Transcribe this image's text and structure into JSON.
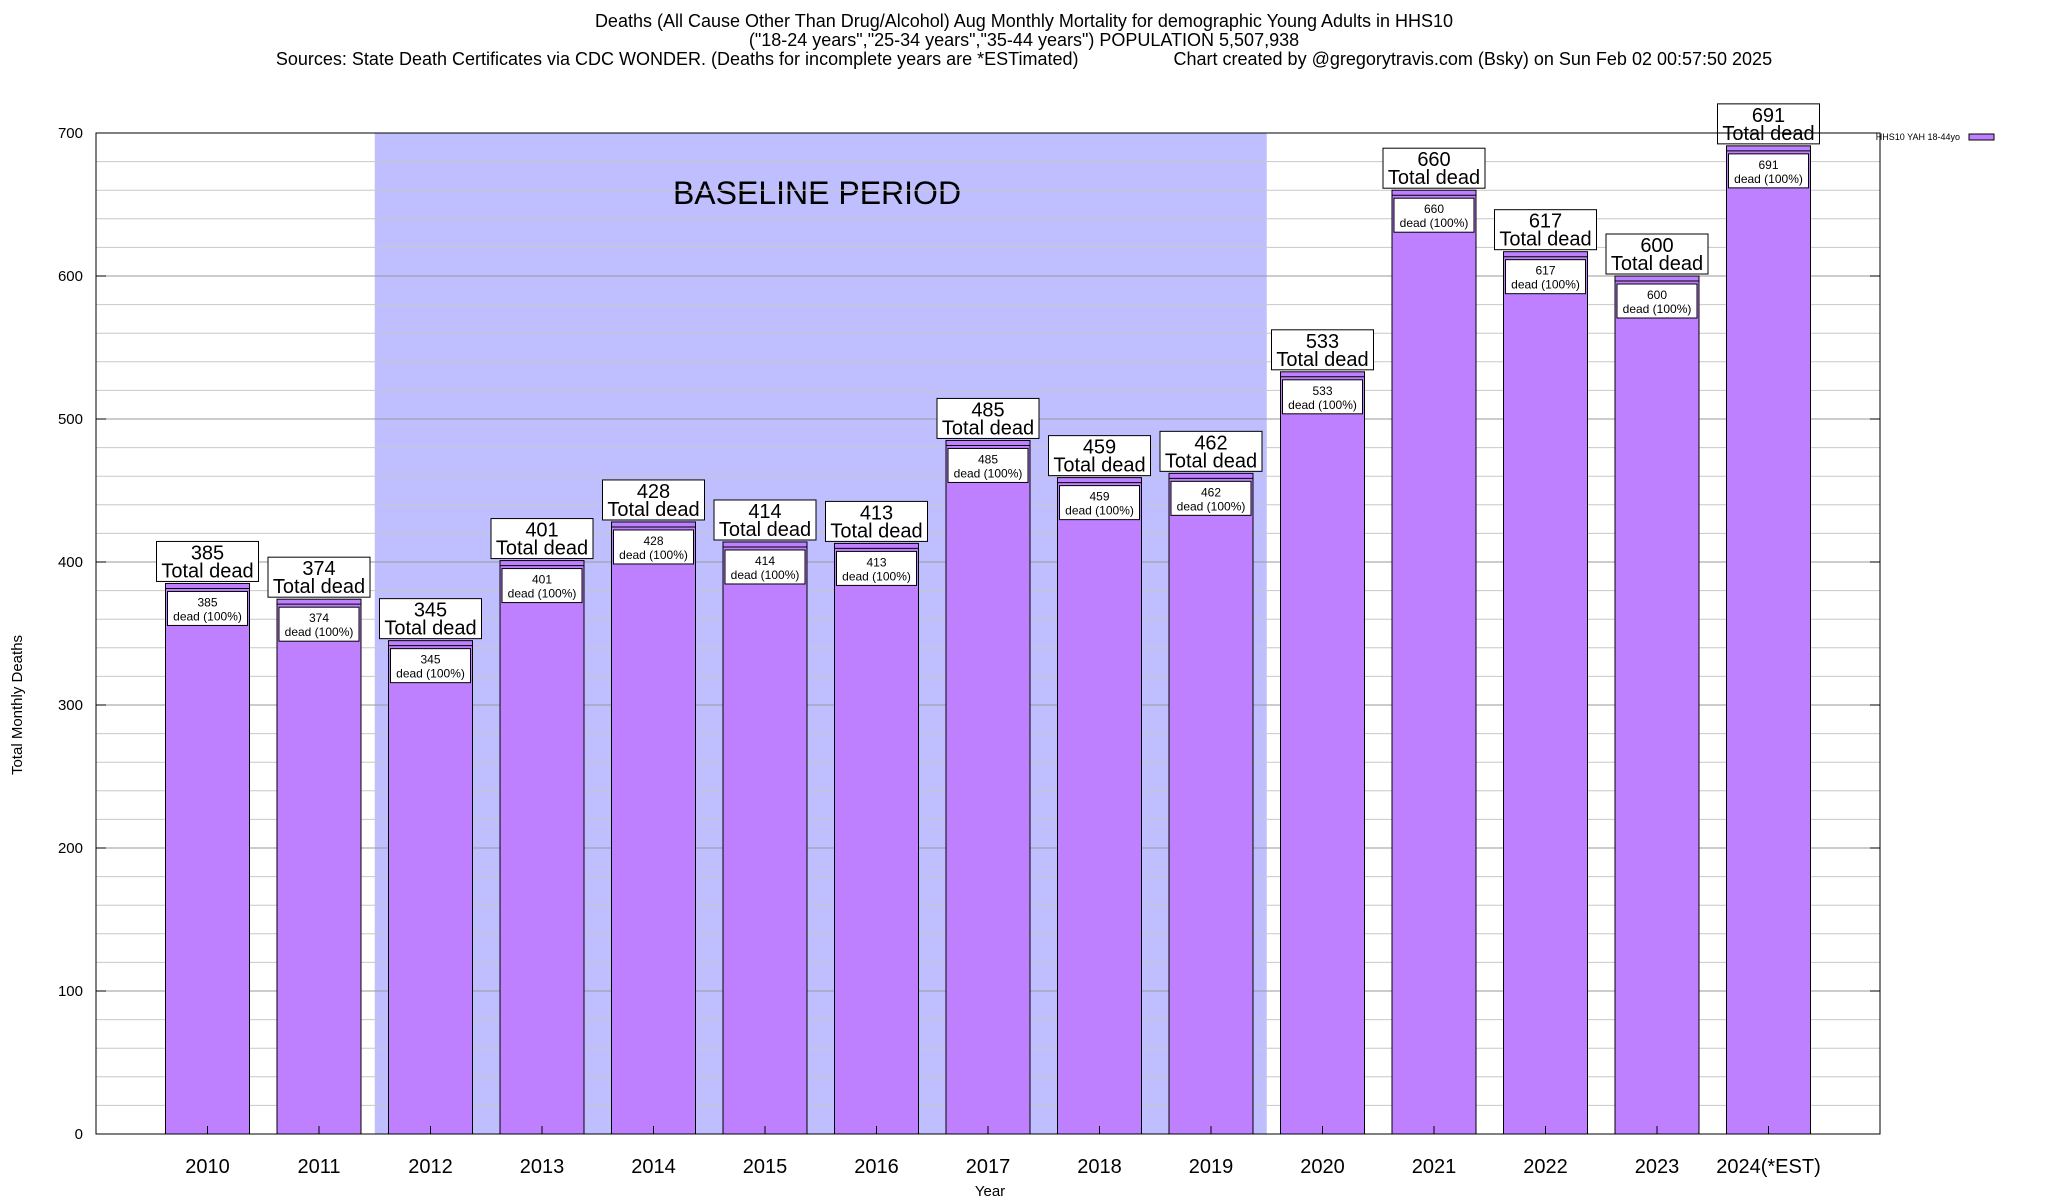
{
  "title": {
    "line1": "Deaths (All Cause Other Than Drug/Alcohol) Aug Monthly Mortality for demographic Young Adults in HHS10",
    "line2": "(\"18-24 years\",\"25-34 years\",\"35-44 years\") POPULATION 5,507,938",
    "line3_left": "Sources: State Death Certificates via CDC WONDER. (Deaths for incomplete years are *ESTimated)",
    "line3_right": "Chart created by @gregorytravis.com (Bsky) on Sun Feb 02 00:57:50 2025"
  },
  "chart_data": {
    "type": "bar",
    "xlabel": "Year",
    "ylabel": "Total Monthly Deaths",
    "ylim": [
      0,
      700
    ],
    "yticks": [
      0,
      100,
      200,
      300,
      400,
      500,
      600,
      700
    ],
    "grid": true,
    "legend_position": "top-right",
    "categories": [
      "2010",
      "2011",
      "2012",
      "2013",
      "2014",
      "2015",
      "2016",
      "2017",
      "2018",
      "2019",
      "2020",
      "2021",
      "2022",
      "2023",
      "2024(*EST)"
    ],
    "series": [
      {
        "name": "HHS10 YAH 18-44yo",
        "color": "#bf80ff",
        "values": [
          385,
          374,
          345,
          401,
          428,
          414,
          413,
          485,
          459,
          462,
          533,
          660,
          617,
          600,
          691
        ]
      }
    ],
    "top_label_suffix": "Total dead",
    "inner_label_suffix": "dead (100%)",
    "baseline": {
      "label": "BASELINE PERIOD",
      "from": "2012",
      "to": "2019",
      "color": "#bfbfff"
    }
  }
}
